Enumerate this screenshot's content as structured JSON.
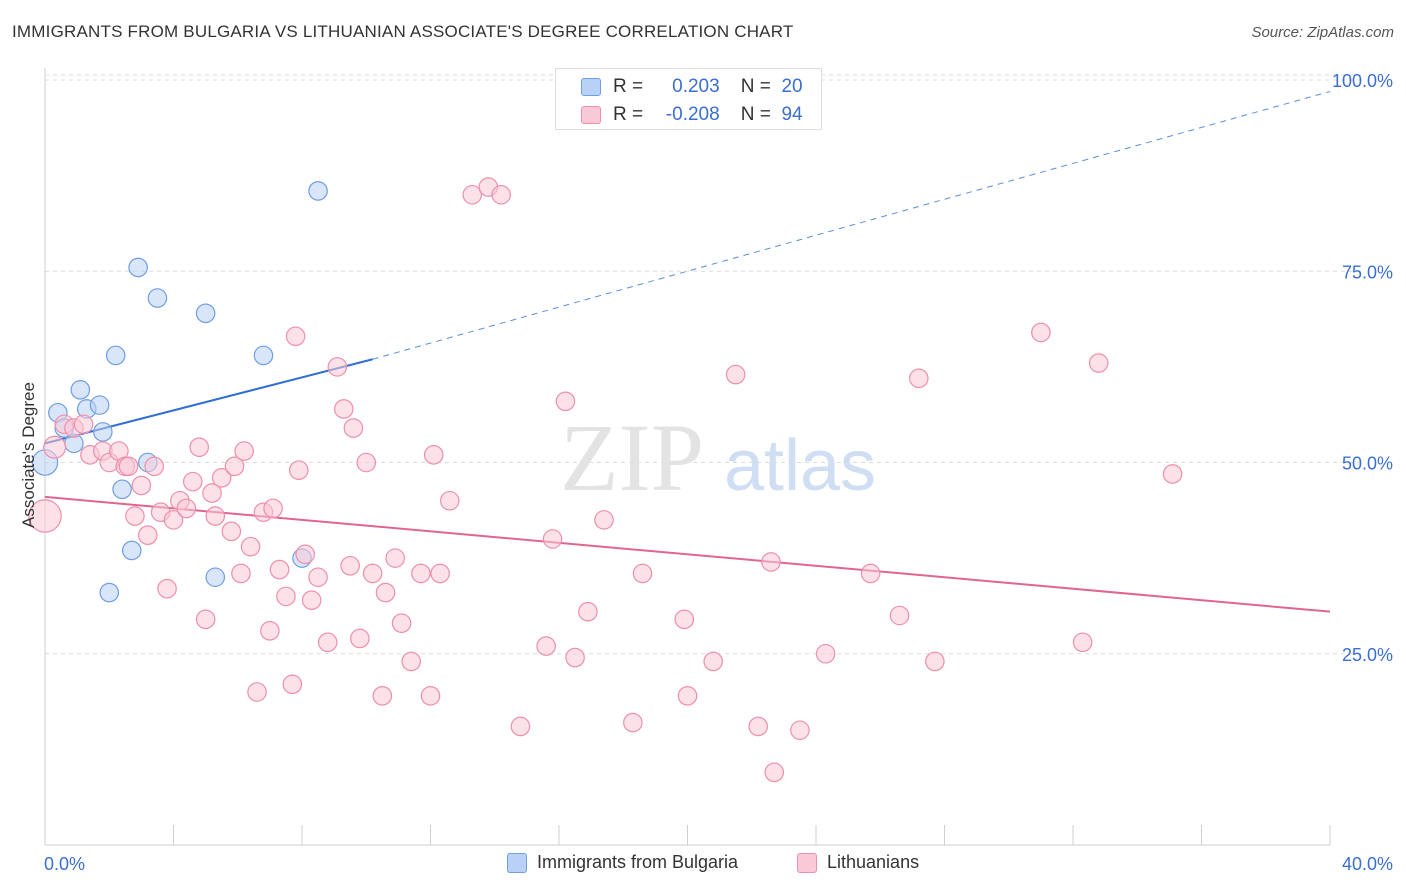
{
  "title": "IMMIGRANTS FROM BULGARIA VS LITHUANIAN ASSOCIATE'S DEGREE CORRELATION CHART",
  "source": "Source: ZipAtlas.com",
  "watermark": {
    "part1": "ZIP",
    "part2": "atlas"
  },
  "stats": [
    {
      "r_label": "R =",
      "r_value": "0.203",
      "n_label": "N =",
      "n_value": "20",
      "color": "#6f9ee6",
      "fill": "#b9d1f4"
    },
    {
      "r_label": "R =",
      "r_value": "-0.208",
      "n_label": "N =",
      "n_value": "94",
      "color": "#ee8fab",
      "fill": "#f9c9d7"
    }
  ],
  "legend": [
    {
      "label": "Immigrants from Bulgaria",
      "color": "#6f9ee6",
      "fill": "#b9d1f4"
    },
    {
      "label": "Lithuanians",
      "color": "#ee8fab",
      "fill": "#f9c9d7"
    }
  ],
  "chart_data": {
    "type": "scatter",
    "title": "IMMIGRANTS FROM BULGARIA VS LITHUANIAN ASSOCIATE'S DEGREE CORRELATION CHART",
    "xlabel": "",
    "ylabel": "Associate's Degree",
    "xlim": [
      0,
      40
    ],
    "ylim": [
      0,
      100
    ],
    "x_tick_labels": [
      "0.0%",
      "40.0%"
    ],
    "y_tick_labels": [
      "25.0%",
      "50.0%",
      "75.0%",
      "100.0%"
    ],
    "y_ticks": [
      25,
      50,
      75,
      100
    ],
    "grid": true,
    "legend_position": "bottom",
    "series": [
      {
        "name": "Immigrants from Bulgaria",
        "color": "#6f9ee6",
        "fill": "#b9d1f4",
        "trend": {
          "x0": 0,
          "y0": 52.5,
          "x1": 10.2,
          "y1": 63.5,
          "dash_to_x": 40,
          "dash_to_y": 98.5
        },
        "points": [
          [
            0.0,
            50.0,
            14
          ],
          [
            0.4,
            56.5,
            10
          ],
          [
            0.6,
            54.5,
            10
          ],
          [
            0.9,
            52.5,
            10
          ],
          [
            1.1,
            59.5,
            10
          ],
          [
            1.3,
            57.0,
            10
          ],
          [
            1.7,
            57.5,
            10
          ],
          [
            1.8,
            54.0,
            10
          ],
          [
            2.2,
            64.0,
            10
          ],
          [
            2.4,
            46.5,
            10
          ],
          [
            2.7,
            38.5,
            10
          ],
          [
            2.0,
            33.0,
            10
          ],
          [
            2.9,
            75.5,
            10
          ],
          [
            3.2,
            50.0,
            10
          ],
          [
            3.5,
            71.5,
            10
          ],
          [
            5.0,
            69.5,
            10
          ],
          [
            5.3,
            35.0,
            10
          ],
          [
            6.8,
            64.0,
            10
          ],
          [
            8.0,
            37.5,
            10
          ],
          [
            8.5,
            85.5,
            10
          ]
        ]
      },
      {
        "name": "Lithuanians",
        "color": "#ee8fab",
        "fill": "#f9c9d7",
        "trend": {
          "x0": 0,
          "y0": 45.5,
          "x1": 40,
          "y1": 30.5
        },
        "points": [
          [
            0.0,
            43.0,
            18
          ],
          [
            0.3,
            52.0,
            12
          ],
          [
            0.6,
            55.0,
            10
          ],
          [
            0.9,
            54.5,
            10
          ],
          [
            1.2,
            55.0,
            10
          ],
          [
            1.4,
            51.0,
            10
          ],
          [
            1.8,
            51.5,
            10
          ],
          [
            2.0,
            50.0,
            10
          ],
          [
            2.3,
            51.5,
            10
          ],
          [
            2.5,
            49.5,
            10
          ],
          [
            2.6,
            49.5,
            10
          ],
          [
            2.8,
            43.0,
            10
          ],
          [
            3.0,
            47.0,
            10
          ],
          [
            3.2,
            40.5,
            10
          ],
          [
            3.4,
            49.5,
            10
          ],
          [
            3.6,
            43.5,
            10
          ],
          [
            3.8,
            33.5,
            10
          ],
          [
            4.0,
            42.5,
            10
          ],
          [
            4.2,
            45.0,
            10
          ],
          [
            4.4,
            44.0,
            10
          ],
          [
            4.6,
            47.5,
            10
          ],
          [
            4.8,
            52.0,
            10
          ],
          [
            5.0,
            29.5,
            10
          ],
          [
            5.2,
            46.0,
            10
          ],
          [
            5.3,
            43.0,
            10
          ],
          [
            5.5,
            48.0,
            10
          ],
          [
            5.8,
            41.0,
            10
          ],
          [
            5.9,
            49.5,
            10
          ],
          [
            6.1,
            35.5,
            10
          ],
          [
            6.2,
            51.5,
            10
          ],
          [
            6.4,
            39.0,
            10
          ],
          [
            6.6,
            20.0,
            10
          ],
          [
            6.8,
            43.5,
            10
          ],
          [
            7.0,
            28.0,
            10
          ],
          [
            7.1,
            44.0,
            10
          ],
          [
            7.3,
            36.0,
            10
          ],
          [
            7.5,
            32.5,
            10
          ],
          [
            7.7,
            21.0,
            10
          ],
          [
            7.8,
            66.5,
            10
          ],
          [
            7.9,
            49.0,
            10
          ],
          [
            8.1,
            38.0,
            10
          ],
          [
            8.3,
            32.0,
            10
          ],
          [
            8.5,
            35.0,
            10
          ],
          [
            8.8,
            26.5,
            10
          ],
          [
            9.1,
            62.5,
            10
          ],
          [
            9.3,
            57.0,
            10
          ],
          [
            9.5,
            36.5,
            10
          ],
          [
            9.6,
            54.5,
            10
          ],
          [
            9.8,
            27.0,
            10
          ],
          [
            10.0,
            50.0,
            10
          ],
          [
            10.2,
            35.5,
            10
          ],
          [
            10.5,
            19.5,
            10
          ],
          [
            10.6,
            33.0,
            10
          ],
          [
            10.9,
            37.5,
            10
          ],
          [
            11.1,
            29.0,
            10
          ],
          [
            11.4,
            24.0,
            10
          ],
          [
            11.7,
            35.5,
            10
          ],
          [
            12.0,
            19.5,
            10
          ],
          [
            12.3,
            35.5,
            10
          ],
          [
            12.1,
            51.0,
            10
          ],
          [
            12.6,
            45.0,
            10
          ],
          [
            13.3,
            85.0,
            10
          ],
          [
            13.8,
            86.0,
            10
          ],
          [
            14.2,
            85.0,
            10
          ],
          [
            14.8,
            15.5,
            10
          ],
          [
            15.6,
            26.0,
            10
          ],
          [
            15.8,
            40.0,
            10
          ],
          [
            16.2,
            58.0,
            10
          ],
          [
            16.5,
            24.5,
            10
          ],
          [
            16.9,
            30.5,
            10
          ],
          [
            17.4,
            42.5,
            10
          ],
          [
            18.3,
            16.0,
            10
          ],
          [
            18.6,
            35.5,
            10
          ],
          [
            19.9,
            29.5,
            10
          ],
          [
            20.0,
            19.5,
            10
          ],
          [
            20.8,
            24.0,
            10
          ],
          [
            21.5,
            61.5,
            10
          ],
          [
            22.2,
            15.5,
            10
          ],
          [
            22.6,
            37.0,
            10
          ],
          [
            22.7,
            9.5,
            10
          ],
          [
            23.5,
            15.0,
            10
          ],
          [
            24.3,
            25.0,
            10
          ],
          [
            25.7,
            35.5,
            10
          ],
          [
            26.6,
            30.0,
            10
          ],
          [
            27.2,
            61.0,
            10
          ],
          [
            27.7,
            24.0,
            10
          ],
          [
            31.0,
            67.0,
            10
          ],
          [
            32.3,
            26.5,
            10
          ],
          [
            32.8,
            63.0,
            10
          ],
          [
            35.1,
            48.5,
            10
          ]
        ]
      }
    ]
  }
}
